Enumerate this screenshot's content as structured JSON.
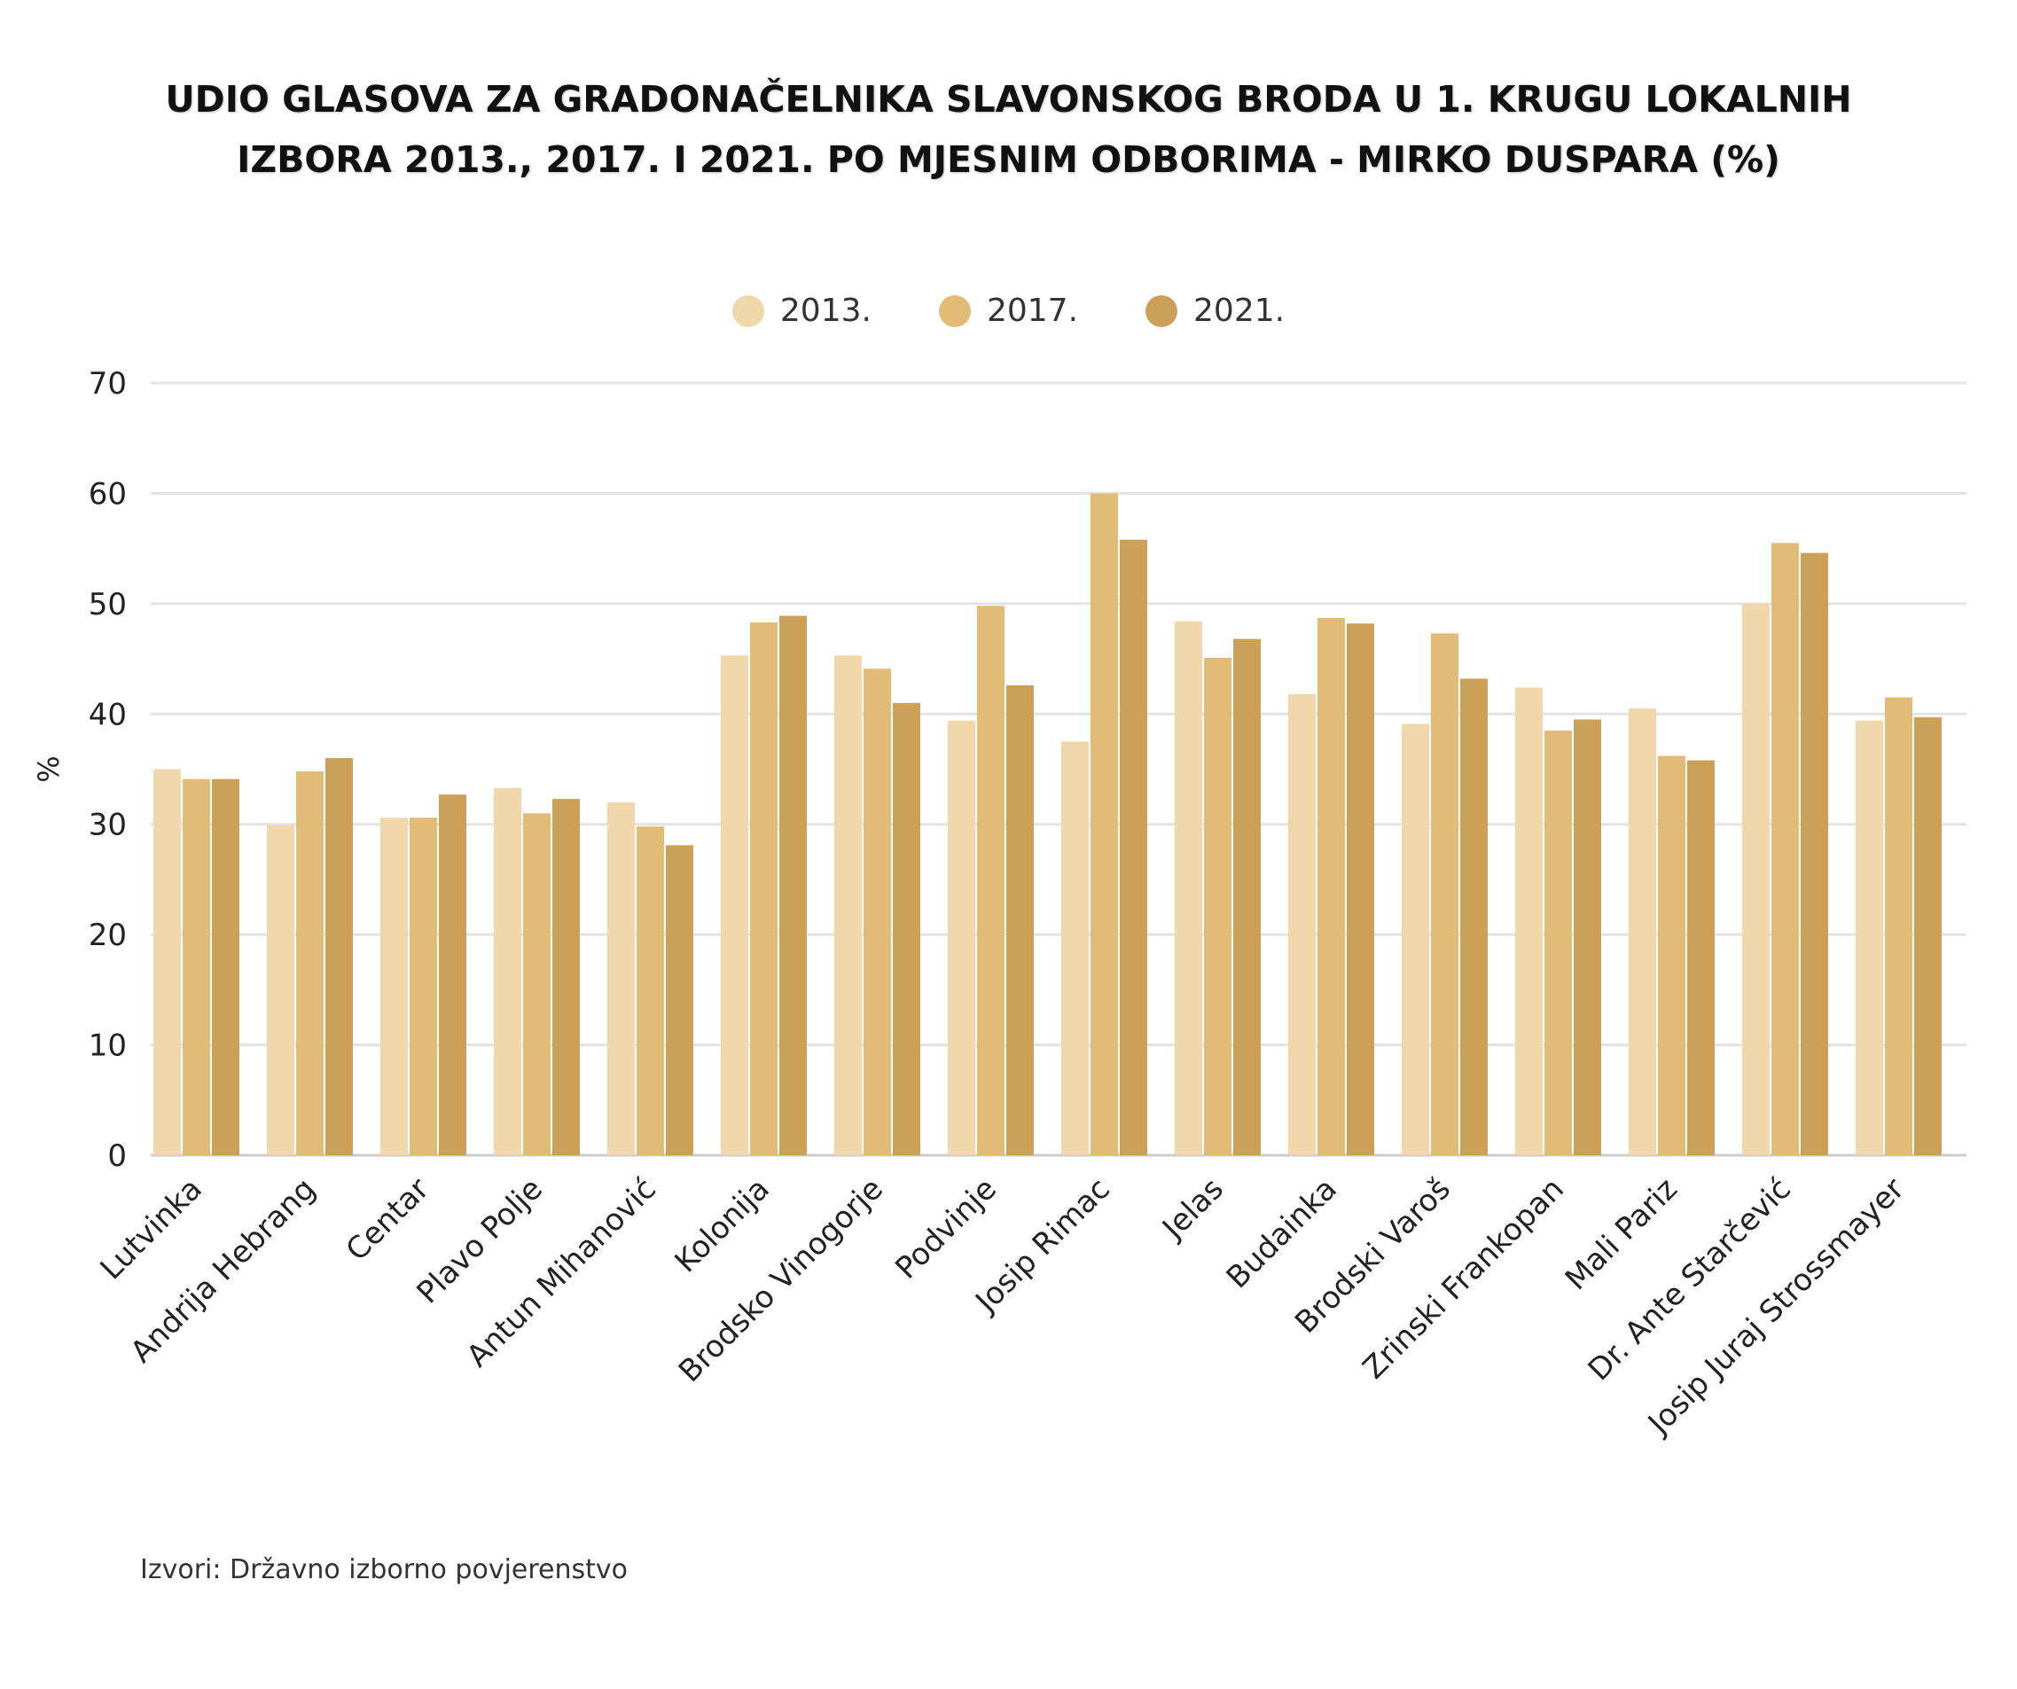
{
  "chart_data": {
    "type": "bar",
    "title_lines": [
      "UDIO GLASOVA ZA GRADONAČELNIKA SLAVONSKOG BRODA U 1. KRUGU LOKALNIH",
      "IZBORA 2013., 2017. I 2021. PO MJESNIM ODBORIMA - MIRKO DUSPARA (%)"
    ],
    "ylabel": "%",
    "xlabel": "",
    "ylim": [
      0,
      70
    ],
    "yticks": [
      0,
      10,
      20,
      30,
      40,
      50,
      60,
      70
    ],
    "grid": true,
    "legend_position": "top-center",
    "categories": [
      "Lutvinka",
      "Andrija Hebrang",
      "Centar",
      "Plavo Polje",
      "Antun Mihanović",
      "Kolonija",
      "Brodsko Vinogorje",
      "Podvinje",
      "Josip Rimac",
      "Jelas",
      "Budainka",
      "Brodski Varoš",
      "Zrinski Frankopan",
      "Mali Pariz",
      "Dr. Ante Starčević",
      "Josip Juraj Strossmayer"
    ],
    "series": [
      {
        "name": "2013.",
        "color": "#f0d8aa",
        "values": [
          35.0,
          29.9,
          30.6,
          33.3,
          32.0,
          45.3,
          45.3,
          39.4,
          37.5,
          48.4,
          41.8,
          39.1,
          42.4,
          40.5,
          50.0,
          39.4
        ]
      },
      {
        "name": "2017.",
        "color": "#e2bb76",
        "values": [
          34.1,
          34.8,
          30.6,
          31.0,
          29.8,
          48.3,
          44.1,
          49.8,
          60.0,
          45.1,
          48.7,
          47.3,
          38.5,
          36.2,
          55.5,
          41.5
        ]
      },
      {
        "name": "2021.",
        "color": "#cba15a",
        "values": [
          34.1,
          36.0,
          32.7,
          32.3,
          28.1,
          48.9,
          41.0,
          42.6,
          55.8,
          46.8,
          48.2,
          43.2,
          39.5,
          35.8,
          54.6,
          39.7
        ]
      }
    ]
  },
  "source": "Izvori: Državno izborno povjerenstvo"
}
